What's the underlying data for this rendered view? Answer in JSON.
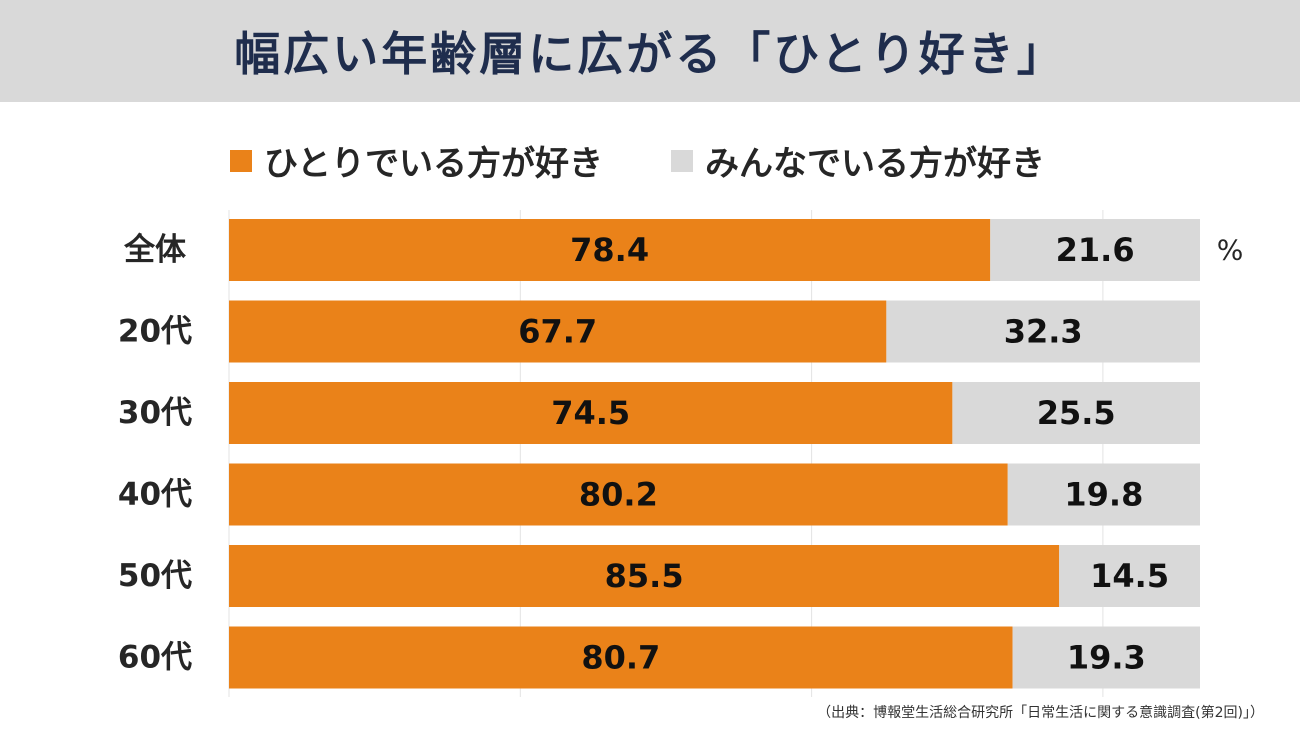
{
  "title": "幅広い年齢層に広がる「ひとり好き」",
  "legend": [
    {
      "label": "ひとりでいる方が好き",
      "color": "#ea8219"
    },
    {
      "label": "みんなでいる方が好き",
      "color": "#d9d9d9"
    }
  ],
  "unit_label": "%",
  "source": "（出典：博報堂生活総合研究所「日常生活に関する意識調査(第2回)」）",
  "chart_data": {
    "type": "bar",
    "orientation": "horizontal",
    "stacked": true,
    "categories": [
      "全体",
      "20代",
      "30代",
      "40代",
      "50代",
      "60代"
    ],
    "series": [
      {
        "name": "ひとりでいる方が好き",
        "color": "#ea8219",
        "values": [
          78.4,
          67.7,
          74.5,
          80.2,
          85.5,
          80.7
        ]
      },
      {
        "name": "みんなでいる方が好き",
        "color": "#d9d9d9",
        "values": [
          21.6,
          32.3,
          25.5,
          19.8,
          14.5,
          19.3
        ]
      }
    ],
    "xlim": [
      0,
      100
    ],
    "grid": true
  }
}
